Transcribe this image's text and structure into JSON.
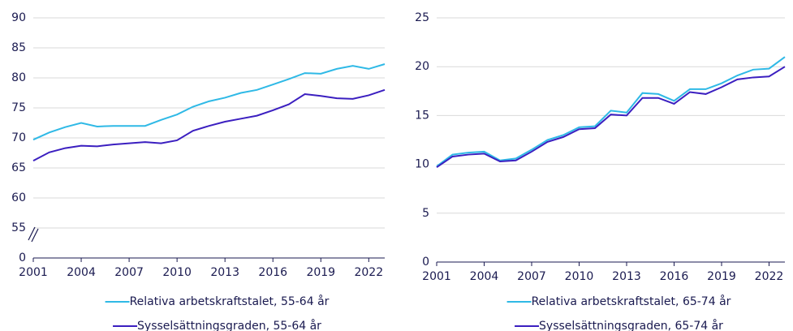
{
  "chart_data": [
    {
      "type": "line",
      "x": [
        2001,
        2002,
        2003,
        2004,
        2005,
        2006,
        2007,
        2008,
        2009,
        2010,
        2011,
        2012,
        2013,
        2014,
        2015,
        2016,
        2017,
        2018,
        2019,
        2020,
        2021,
        2022,
        2023
      ],
      "xlim": [
        2001,
        2023
      ],
      "xticks": [
        2001,
        2004,
        2007,
        2010,
        2013,
        2016,
        2019,
        2022
      ],
      "ylim": [
        50,
        90
      ],
      "yticks": [
        55,
        60,
        65,
        70,
        75,
        80,
        85,
        90
      ],
      "y_break_tick": 0,
      "grid": true,
      "series": [
        {
          "name": "Relativa arbetskraftstalet, 55-64 år",
          "color": "#2fb9e6",
          "values": [
            69.7,
            70.9,
            71.8,
            72.5,
            71.9,
            72.0,
            72.0,
            72.0,
            73.0,
            73.9,
            75.2,
            76.1,
            76.7,
            77.5,
            78.0,
            78.9,
            79.8,
            80.8,
            80.7,
            81.5,
            82.0,
            81.5,
            82.3
          ]
        },
        {
          "name": "Sysselsättningsgraden, 55-64 år",
          "color": "#3b1fc0",
          "values": [
            66.2,
            67.6,
            68.3,
            68.7,
            68.6,
            68.9,
            69.1,
            69.3,
            69.1,
            69.6,
            71.2,
            72.0,
            72.7,
            73.2,
            73.7,
            74.6,
            75.6,
            77.3,
            77.0,
            76.6,
            76.5,
            77.1,
            78.0
          ]
        }
      ]
    },
    {
      "type": "line",
      "x": [
        2001,
        2002,
        2003,
        2004,
        2005,
        2006,
        2007,
        2008,
        2009,
        2010,
        2011,
        2012,
        2013,
        2014,
        2015,
        2016,
        2017,
        2018,
        2019,
        2020,
        2021,
        2022,
        2023
      ],
      "xlim": [
        2001,
        2023
      ],
      "xticks": [
        2001,
        2004,
        2007,
        2010,
        2013,
        2016,
        2019,
        2022
      ],
      "ylim": [
        0,
        25
      ],
      "yticks": [
        0,
        5,
        10,
        15,
        20,
        25
      ],
      "grid": true,
      "series": [
        {
          "name": "Relativa arbetskraftstalet, 65-74 år",
          "color": "#2fb9e6",
          "values": [
            9.8,
            11.0,
            11.2,
            11.3,
            10.4,
            10.6,
            11.5,
            12.5,
            13.0,
            13.8,
            13.9,
            15.5,
            15.3,
            17.3,
            17.2,
            16.5,
            17.7,
            17.7,
            18.3,
            19.1,
            19.7,
            19.8,
            21.0
          ]
        },
        {
          "name": "Sysselsättningsgraden, 65-74 år",
          "color": "#3b1fc0",
          "values": [
            9.7,
            10.8,
            11.0,
            11.1,
            10.3,
            10.4,
            11.3,
            12.3,
            12.8,
            13.6,
            13.7,
            15.1,
            15.0,
            16.8,
            16.8,
            16.2,
            17.4,
            17.2,
            17.9,
            18.7,
            18.9,
            19.0,
            20.0
          ]
        }
      ]
    }
  ]
}
